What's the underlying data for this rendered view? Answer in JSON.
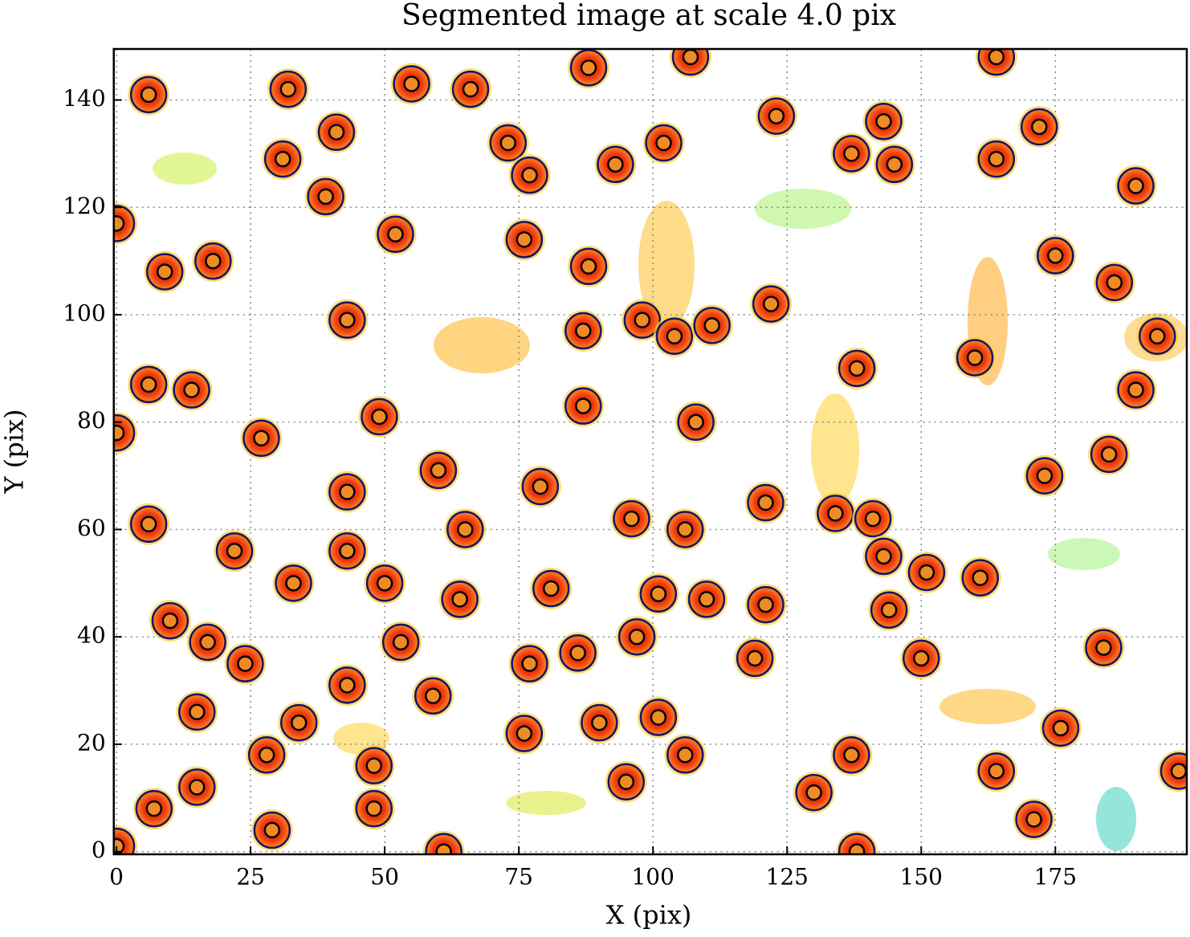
{
  "chart_data": {
    "type": "scatter",
    "title": "Segmented image at scale 4.0 pix",
    "x_label": "X (pix)",
    "y_label": "Y (pix)",
    "xlim": [
      -0.5,
      199.5
    ],
    "ylim": [
      -0.5,
      149.5
    ],
    "xticks": [
      0,
      25,
      50,
      75,
      100,
      125,
      150,
      175
    ],
    "yticks": [
      0,
      20,
      40,
      60,
      80,
      100,
      120,
      140
    ],
    "grid": true,
    "marker_color": "#f08a24",
    "region_color": "#e8320c",
    "contour_color": "#14146e",
    "x": [
      6,
      32,
      55,
      66,
      88,
      107,
      164,
      41,
      31,
      73,
      77,
      93,
      102,
      123,
      143,
      137,
      145,
      164,
      172,
      190,
      0,
      39,
      52,
      9,
      18,
      76,
      88,
      175,
      186,
      43,
      87,
      98,
      104,
      111,
      122,
      194,
      6,
      14,
      49,
      138,
      160,
      87,
      108,
      190,
      0,
      27,
      60,
      43,
      79,
      173,
      185,
      6,
      22,
      65,
      96,
      106,
      121,
      134,
      141,
      43,
      50,
      33,
      64,
      81,
      101,
      110,
      121,
      143,
      151,
      161,
      10,
      17,
      24,
      53,
      97,
      144,
      150,
      184,
      86,
      119,
      77,
      43,
      59,
      15,
      34,
      28,
      48,
      76,
      90,
      101,
      106,
      137,
      164,
      176,
      198,
      15,
      7,
      48,
      29,
      95,
      130,
      171,
      0,
      61,
      138
    ],
    "values": [
      141,
      142,
      143,
      142,
      146,
      148,
      148,
      134,
      129,
      132,
      126,
      128,
      132,
      137,
      136,
      130,
      128,
      129,
      135,
      124,
      117,
      122,
      115,
      108,
      110,
      114,
      109,
      111,
      106,
      99,
      97,
      99,
      96,
      98,
      102,
      96,
      87,
      86,
      81,
      90,
      92,
      83,
      80,
      86,
      78,
      77,
      71,
      67,
      68,
      70,
      74,
      61,
      56,
      60,
      62,
      60,
      65,
      63,
      62,
      56,
      50,
      50,
      47,
      49,
      48,
      47,
      46,
      55,
      52,
      51,
      43,
      39,
      35,
      39,
      40,
      45,
      36,
      38,
      37,
      36,
      35,
      31,
      29,
      26,
      24,
      18,
      16,
      22,
      24,
      25,
      18,
      18,
      15,
      23,
      15,
      12,
      8,
      8,
      4,
      13,
      11,
      6,
      1,
      0,
      0
    ]
  }
}
